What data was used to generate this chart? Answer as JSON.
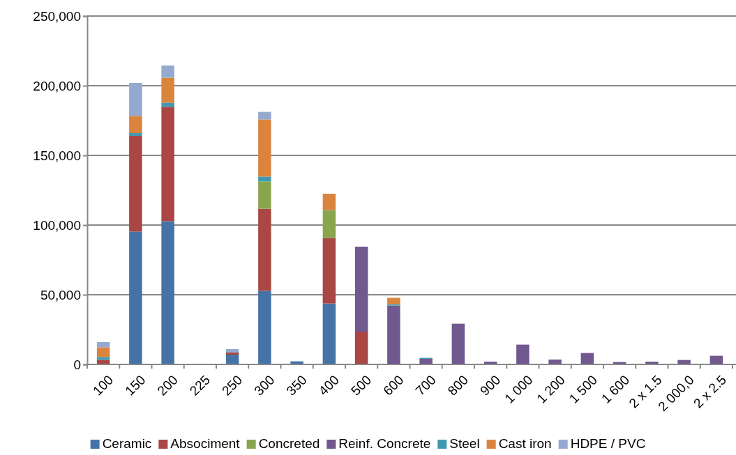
{
  "chart_data": {
    "type": "bar",
    "stacked": true,
    "categories": [
      "100",
      "150",
      "200",
      "225",
      "250",
      "300",
      "350",
      "400",
      "500",
      "600",
      "700",
      "800",
      "900",
      "1 000",
      "1 200",
      "1 500",
      "1 600",
      "2 x 1.5",
      "2 000,0",
      "2 x 2.5"
    ],
    "ylim": [
      0,
      250000
    ],
    "yticks": [
      {
        "value": 0,
        "label": "0"
      },
      {
        "value": 50000,
        "label": "50,000"
      },
      {
        "value": 100000,
        "label": "100,000"
      },
      {
        "value": 150000,
        "label": "150,000"
      },
      {
        "value": 200000,
        "label": "200,000"
      },
      {
        "value": 250000,
        "label": "250,000"
      }
    ],
    "grid": "y",
    "legend": "bottom",
    "series": [
      {
        "name": "Ceramic",
        "color": "#4572a7",
        "values": [
          0,
          95300,
          102800,
          0,
          7000,
          52800,
          2200,
          43700,
          0,
          0,
          0,
          0,
          0,
          0,
          0,
          0,
          0,
          0,
          0,
          0
        ]
      },
      {
        "name": "Absociment",
        "color": "#aa4643",
        "values": [
          3200,
          68700,
          82000,
          0,
          1500,
          58900,
          0,
          47000,
          23500,
          0,
          0,
          0,
          0,
          0,
          0,
          0,
          0,
          0,
          0,
          0
        ]
      },
      {
        "name": "Concreted",
        "color": "#89a54e",
        "values": [
          0,
          0,
          0,
          0,
          0,
          19600,
          0,
          20100,
          0,
          0,
          0,
          0,
          0,
          0,
          0,
          0,
          0,
          0,
          0,
          0
        ]
      },
      {
        "name": "Reinf. Concrete",
        "color": "#71588f",
        "values": [
          0,
          0,
          0,
          0,
          0,
          0,
          0,
          0,
          61000,
          42200,
          4000,
          29200,
          2000,
          14200,
          3500,
          8200,
          1700,
          2000,
          3200,
          6200
        ]
      },
      {
        "name": "Steel",
        "color": "#4198af",
        "values": [
          2100,
          2000,
          3000,
          0,
          0,
          3500,
          0,
          0,
          0,
          1000,
          700,
          0,
          0,
          0,
          0,
          0,
          0,
          0,
          0,
          0
        ]
      },
      {
        "name": "Cast iron",
        "color": "#db843d",
        "values": [
          7000,
          12300,
          17900,
          0,
          0,
          41000,
          0,
          11700,
          0,
          4600,
          0,
          0,
          0,
          0,
          0,
          0,
          0,
          0,
          0,
          0
        ]
      },
      {
        "name": "HDPE / PVC",
        "color": "#93a9cf",
        "values": [
          3700,
          23700,
          8800,
          0,
          2500,
          5400,
          0,
          0,
          0,
          0,
          0,
          0,
          0,
          0,
          0,
          0,
          0,
          0,
          0,
          0
        ]
      }
    ]
  }
}
